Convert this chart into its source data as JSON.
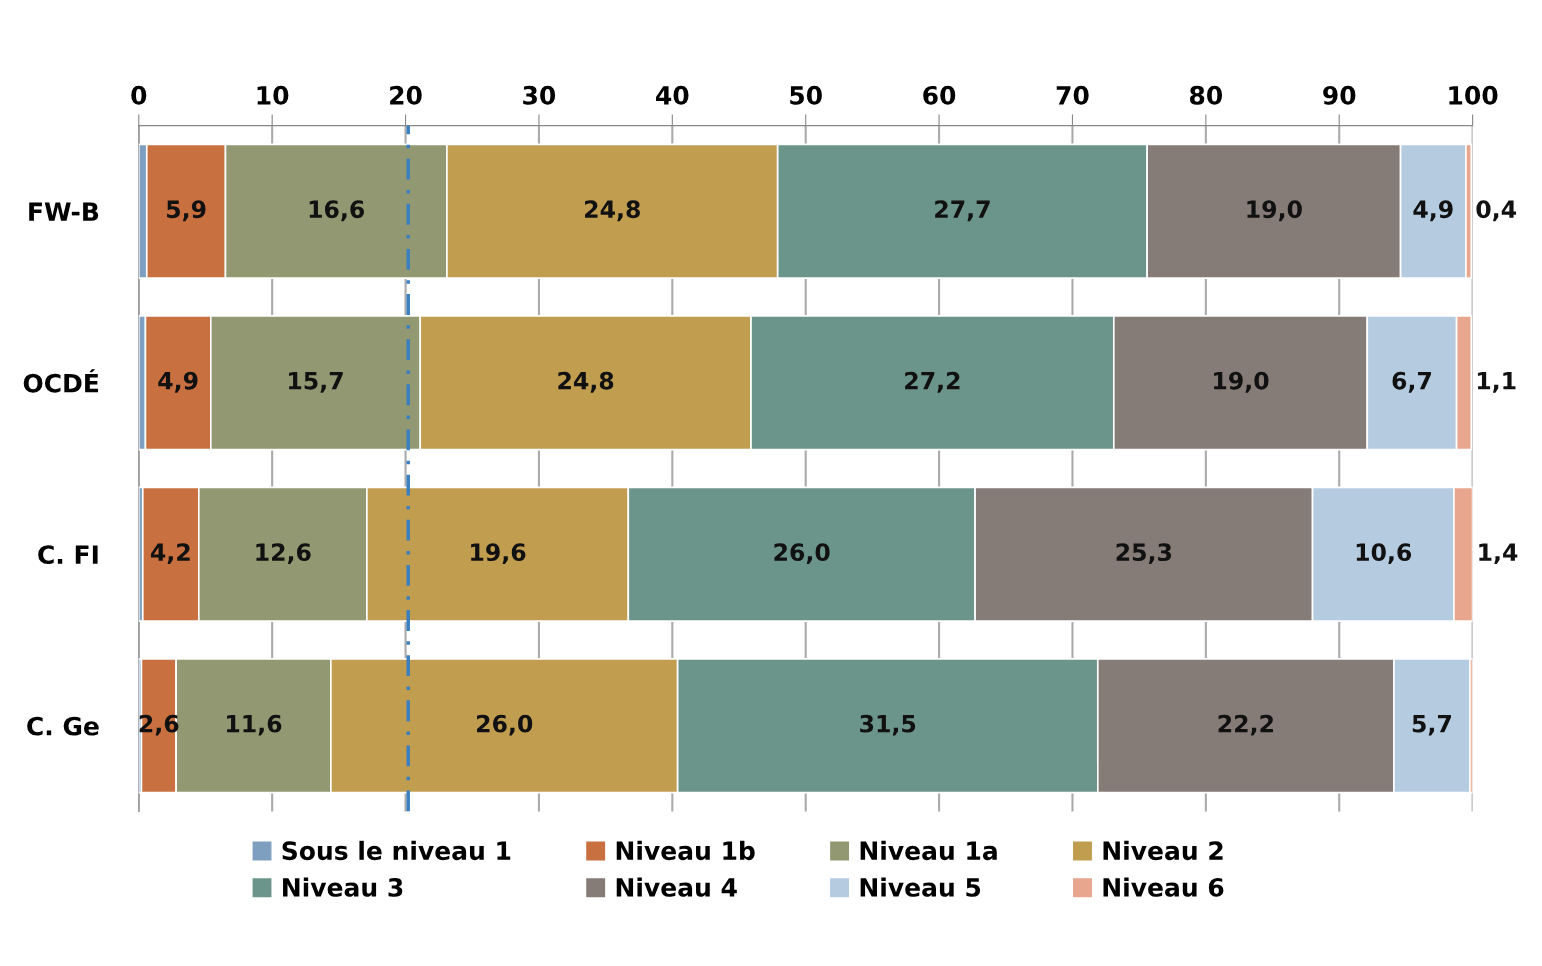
{
  "chart_data": {
    "type": "bar",
    "orientation": "horizontal",
    "stacked": true,
    "categories": [
      "FW-B",
      "OCDÉ",
      "C. FI",
      "C. Ge"
    ],
    "series": [
      {
        "name": "Sous le niveau 1",
        "color": "#7f9fc0",
        "values": [
          0.6,
          0.5,
          0.3,
          0.2
        ],
        "value_labels": [
          null,
          null,
          null,
          null
        ]
      },
      {
        "name": "Niveau 1b",
        "color": "#c8703f",
        "values": [
          5.9,
          4.9,
          4.2,
          2.6
        ],
        "value_labels": [
          "5,9",
          "4,9",
          "4,2",
          "2,6"
        ]
      },
      {
        "name": "Niveau 1a",
        "color": "#919872",
        "values": [
          16.6,
          15.7,
          12.6,
          11.6
        ],
        "value_labels": [
          "16,6",
          "15,7",
          "12,6",
          "11,6"
        ]
      },
      {
        "name": "Niveau 2",
        "color": "#c19d50",
        "values": [
          24.8,
          24.8,
          19.6,
          26.0
        ],
        "value_labels": [
          "24,8",
          "24,8",
          "19,6",
          "26,0"
        ]
      },
      {
        "name": "Niveau 3",
        "color": "#6b958a",
        "values": [
          27.7,
          27.2,
          26.0,
          31.5
        ],
        "value_labels": [
          "27,7",
          "27,2",
          "26,0",
          "31,5"
        ]
      },
      {
        "name": "Niveau 4",
        "color": "#857b77",
        "values": [
          19.0,
          19.0,
          25.3,
          22.2
        ],
        "value_labels": [
          "19,0",
          "19,0",
          "25,3",
          "22,2"
        ]
      },
      {
        "name": "Niveau 5",
        "color": "#b4cbe0",
        "values": [
          4.9,
          6.7,
          10.6,
          5.7
        ],
        "value_labels": [
          "4,9",
          "6,7",
          "10,6",
          "5,7"
        ]
      },
      {
        "name": "Niveau 6",
        "color": "#e8a68f",
        "values": [
          0.4,
          1.1,
          1.4,
          0.2
        ],
        "value_labels": [
          "0,4",
          "1,1",
          "1,4",
          null
        ]
      }
    ],
    "xlim": [
      0,
      100
    ],
    "xticks": [
      0,
      10,
      20,
      30,
      40,
      50,
      60,
      70,
      80,
      90,
      100
    ],
    "grid": "x",
    "legend": "bottom",
    "ref_lines": [
      {
        "axis": "x",
        "value": 20.2,
        "color": "#3a7fc0",
        "line_style": "dashed"
      }
    ]
  }
}
